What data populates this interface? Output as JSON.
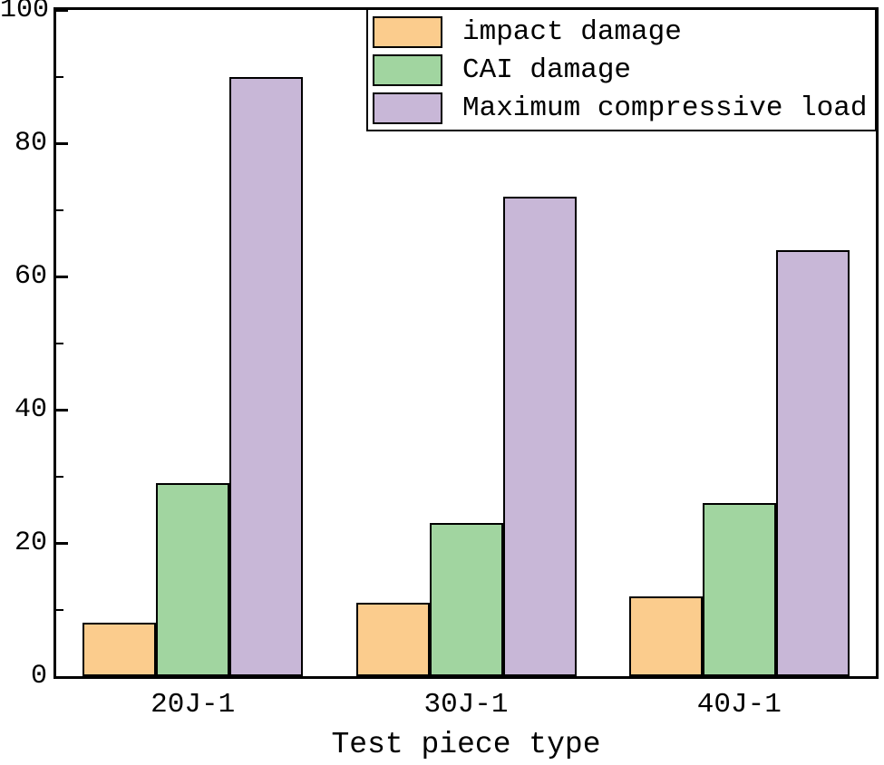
{
  "chart_data": {
    "type": "bar",
    "title": "",
    "xlabel": "Test piece type",
    "ylabel": "",
    "categories": [
      "20J-1",
      "30J-1",
      "40J-1"
    ],
    "series": [
      {
        "name": "impact damage",
        "color": "#FBCC8D",
        "values": [
          8,
          11,
          12
        ]
      },
      {
        "name": "CAI damage",
        "color": "#A1D5A0",
        "values": [
          29,
          23,
          26
        ]
      },
      {
        "name": "Maximum compressive load",
        "color": "#C8B7D7",
        "values": [
          90,
          72,
          64
        ]
      }
    ],
    "ylim": [
      0,
      100
    ],
    "yticks_major": [
      0,
      20,
      40,
      60,
      80,
      100
    ],
    "yticks_minor": [
      10,
      30,
      50,
      70,
      90
    ],
    "tick_direction": "in",
    "grid": "off",
    "legend_position": "top-right",
    "bar_edge_color": "#000000",
    "axis_color": "#000000"
  }
}
